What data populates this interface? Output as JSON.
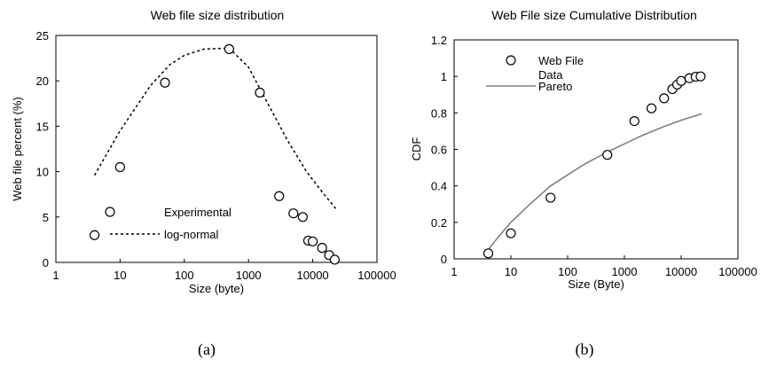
{
  "chart_data": [
    {
      "type": "scatter",
      "title": "Web file size distribution",
      "xlabel": "Size (byte)",
      "ylabel": "Web file percent (%)",
      "xscale": "log",
      "xlim": [
        1,
        100000
      ],
      "ylim": [
        0,
        25
      ],
      "xticks": [
        "1",
        "10",
        "100",
        "1000",
        "10000",
        "100000"
      ],
      "yticks": [
        "0",
        "5",
        "10",
        "15",
        "20",
        "25"
      ],
      "grid": false,
      "legend": "bottom-left",
      "series": [
        {
          "name": "Experimental",
          "style": "open-circle",
          "color": "#000000",
          "x": [
            4,
            10,
            50,
            500,
            1500,
            3000,
            5000,
            7000,
            8500,
            10000,
            14000,
            18000,
            22000
          ],
          "y": [
            3.0,
            10.5,
            19.8,
            23.5,
            18.7,
            7.3,
            5.4,
            5.0,
            2.4,
            2.3,
            1.6,
            0.8,
            0.3
          ]
        },
        {
          "name": "log-normal",
          "style": "dotted-line",
          "color": "#000000",
          "x": [
            4,
            10,
            30,
            60,
            100,
            200,
            500,
            1000,
            2000,
            4000,
            8000,
            15000,
            23000
          ],
          "y": [
            9.6,
            14.5,
            19.5,
            21.8,
            22.8,
            23.5,
            23.6,
            21.5,
            17.5,
            13.5,
            10.0,
            7.5,
            5.9
          ]
        }
      ],
      "caption": "(a)"
    },
    {
      "type": "scatter",
      "title": "Web File size Cumulative Distribution",
      "xlabel": "Size (Byte)",
      "ylabel": "CDF",
      "xscale": "log",
      "xlim": [
        1,
        100000
      ],
      "ylim": [
        0,
        1.2
      ],
      "xticks": [
        "1",
        "10",
        "100",
        "1000",
        "10000",
        "100000"
      ],
      "yticks": [
        "0",
        "0.2",
        "0.4",
        "0.6",
        "0.8",
        "1",
        "1.2"
      ],
      "grid": false,
      "legend": "top-left",
      "series": [
        {
          "name": "Web File Data",
          "legend_lines": [
            "Web File",
            "Data"
          ],
          "style": "open-circle",
          "color": "#000000",
          "x": [
            4,
            10,
            50,
            500,
            1500,
            3000,
            5000,
            7000,
            8500,
            10000,
            14000,
            18000,
            22000
          ],
          "y": [
            0.03,
            0.14,
            0.335,
            0.57,
            0.755,
            0.825,
            0.88,
            0.93,
            0.955,
            0.975,
            0.99,
            0.998,
            1.0
          ]
        },
        {
          "name": "Pareto",
          "style": "solid-line",
          "color": "#808080",
          "x": [
            4,
            6,
            10,
            20,
            50,
            100,
            200,
            500,
            1000,
            2000,
            5000,
            10000,
            23000
          ],
          "y": [
            0.05,
            0.12,
            0.2,
            0.29,
            0.4,
            0.46,
            0.52,
            0.585,
            0.63,
            0.675,
            0.725,
            0.76,
            0.795
          ]
        }
      ],
      "caption": "(b)"
    }
  ]
}
